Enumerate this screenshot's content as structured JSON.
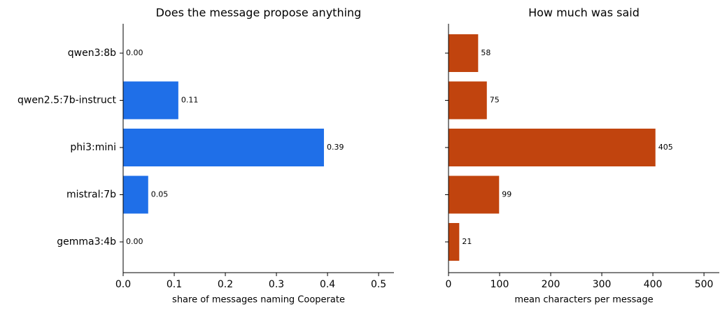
{
  "chart_data": [
    {
      "type": "barh",
      "title": "Does the message propose anything",
      "xlabel": "share of messages naming Cooperate",
      "categories": [
        "qwen3:8b",
        "qwen2.5:7b-instruct",
        "phi3:mini",
        "mistral:7b",
        "gemma3:4b"
      ],
      "values": [
        0,
        0.108,
        0.393,
        0.049,
        0
      ],
      "value_labels": [
        "0.00",
        "0.11",
        "0.39",
        "0.05",
        "0.00"
      ],
      "color": "#1f6fe8",
      "xlim": [
        0,
        0.53
      ],
      "xticks": [
        {
          "value": 0,
          "label": "0.0"
        },
        0.1,
        0.2,
        0.3,
        0.4,
        0.5
      ]
    },
    {
      "type": "barh",
      "title": "How much was said",
      "xlabel": "mean characters per message",
      "values": [
        58,
        75,
        405,
        99,
        21
      ],
      "color": "#c1440e",
      "xlim": [
        0,
        530
      ],
      "xticks": [
        0,
        100,
        200,
        300,
        400,
        500
      ]
    }
  ]
}
